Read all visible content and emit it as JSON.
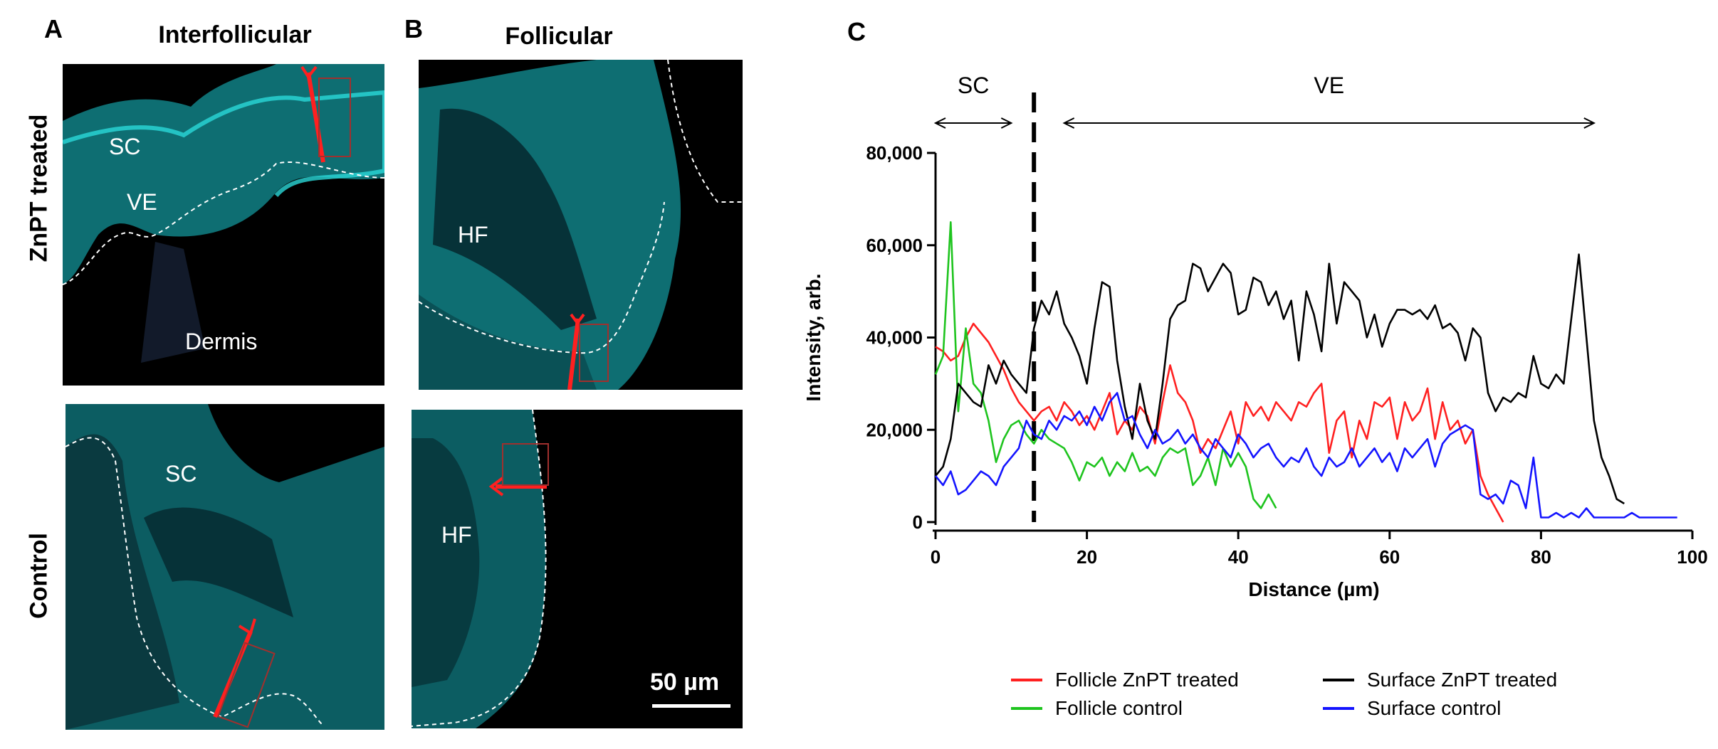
{
  "panels": {
    "a": {
      "letter": "A",
      "title": "Interfollicular"
    },
    "b": {
      "letter": "B",
      "title": "Follicular"
    },
    "c": {
      "letter": "C"
    }
  },
  "row_labels": {
    "top": "ZnPT treated",
    "bottom": "Control"
  },
  "image_labels": {
    "a_top": {
      "sc": "SC",
      "ve": "VE",
      "dermis": "Dermis"
    },
    "a_bottom": {
      "sc": "SC"
    },
    "b_top": {
      "hf": "HF"
    },
    "b_bottom": {
      "hf": "HF"
    }
  },
  "scale_bar": {
    "label": "50 µm"
  },
  "colors": {
    "cyan": "#22d3d3",
    "red": "#ff2020",
    "black": "#000000",
    "green": "#1ec41e",
    "blue": "#1414ff"
  },
  "chart_data": {
    "type": "line",
    "xlabel": "Distance (µm)",
    "ylabel": "Intensity, arb.",
    "xlim": [
      0,
      100
    ],
    "ylim": [
      0,
      80000
    ],
    "x_ticks": [
      0,
      20,
      40,
      60,
      80,
      100
    ],
    "y_ticks": [
      0,
      20000,
      40000,
      60000,
      80000
    ],
    "y_tick_labels": [
      "0",
      "20,000",
      "40,000",
      "60,000",
      "80,000"
    ],
    "divider_x": 13,
    "region_annotations": [
      {
        "label": "SC",
        "x_start": 0,
        "x_end": 10
      },
      {
        "label": "VE",
        "x_start": 17,
        "x_end": 87
      }
    ],
    "series": [
      {
        "name": "Follicle ZnPT treated",
        "color": "#ff2020",
        "x": [
          0,
          1,
          2,
          3,
          4,
          5,
          6,
          7,
          8,
          9,
          10,
          11,
          12,
          13,
          14,
          15,
          16,
          17,
          18,
          19,
          20,
          21,
          22,
          23,
          24,
          25,
          26,
          27,
          28,
          29,
          30,
          31,
          32,
          33,
          34,
          35,
          36,
          37,
          38,
          39,
          40,
          41,
          42,
          43,
          44,
          45,
          46,
          47,
          48,
          49,
          50,
          51,
          52,
          53,
          54,
          55,
          56,
          57,
          58,
          59,
          60,
          61,
          62,
          63,
          64,
          65,
          66,
          67,
          68,
          69,
          70,
          71,
          72,
          73,
          74,
          75
        ],
        "y": [
          38000,
          37000,
          35000,
          36000,
          40000,
          43000,
          41000,
          39000,
          36000,
          33000,
          29000,
          26000,
          24000,
          22000,
          24000,
          25000,
          22000,
          26000,
          24000,
          21000,
          23000,
          20000,
          24000,
          28000,
          19000,
          22000,
          20000,
          25000,
          23000,
          17000,
          26000,
          34000,
          28000,
          26000,
          22000,
          15000,
          18000,
          16000,
          20000,
          24000,
          17000,
          26000,
          23000,
          25000,
          22000,
          26000,
          24000,
          22000,
          26000,
          25000,
          28000,
          30000,
          15000,
          22000,
          24000,
          14000,
          22000,
          18000,
          26000,
          25000,
          27000,
          18000,
          26000,
          22000,
          24000,
          29000,
          18000,
          26000,
          20000,
          22000,
          17000,
          20000,
          10000,
          6000,
          3000,
          0
        ]
      },
      {
        "name": "Follicle control",
        "color": "#1ec41e",
        "x": [
          0,
          1,
          2,
          3,
          4,
          5,
          6,
          7,
          8,
          9,
          10,
          11,
          12,
          13,
          14,
          15,
          16,
          17,
          18,
          19,
          20,
          21,
          22,
          23,
          24,
          25,
          26,
          27,
          28,
          29,
          30,
          31,
          32,
          33,
          34,
          35,
          36,
          37,
          38,
          39,
          40,
          41,
          42,
          43,
          44,
          45
        ],
        "y": [
          32000,
          36000,
          65000,
          24000,
          42000,
          30000,
          28000,
          22000,
          13000,
          18000,
          21000,
          22000,
          19000,
          17000,
          20000,
          18000,
          17000,
          16000,
          13000,
          9000,
          13000,
          12000,
          14000,
          10000,
          13000,
          11000,
          15000,
          11000,
          12000,
          10000,
          14000,
          16000,
          15000,
          16000,
          8000,
          10000,
          14000,
          8000,
          16000,
          12000,
          15000,
          12000,
          5000,
          3000,
          6000,
          3000
        ]
      },
      {
        "name": "Surface ZnPT treated",
        "color": "#000000",
        "x": [
          0,
          1,
          2,
          3,
          4,
          5,
          6,
          7,
          8,
          9,
          10,
          11,
          12,
          13,
          14,
          15,
          16,
          17,
          18,
          19,
          20,
          21,
          22,
          23,
          24,
          25,
          26,
          27,
          28,
          29,
          30,
          31,
          32,
          33,
          34,
          35,
          36,
          37,
          38,
          39,
          40,
          41,
          42,
          43,
          44,
          45,
          46,
          47,
          48,
          49,
          50,
          51,
          52,
          53,
          54,
          55,
          56,
          57,
          58,
          59,
          60,
          61,
          62,
          63,
          64,
          65,
          66,
          67,
          68,
          69,
          70,
          71,
          72,
          73,
          74,
          75,
          76,
          77,
          78,
          79,
          80,
          81,
          82,
          83,
          84,
          85,
          86,
          87,
          88,
          89,
          90,
          91
        ],
        "y": [
          10000,
          12000,
          18000,
          30000,
          28000,
          26000,
          25000,
          34000,
          30000,
          35000,
          32000,
          30000,
          28000,
          42000,
          48000,
          45000,
          50000,
          43000,
          40000,
          36000,
          30000,
          42000,
          52000,
          51000,
          35000,
          25000,
          18000,
          30000,
          22000,
          18000,
          30000,
          44000,
          47000,
          48000,
          56000,
          55000,
          50000,
          53000,
          56000,
          54000,
          45000,
          46000,
          53000,
          52000,
          47000,
          50000,
          44000,
          48000,
          35000,
          50000,
          45000,
          37000,
          56000,
          43000,
          52000,
          50000,
          48000,
          40000,
          45000,
          38000,
          43000,
          46000,
          46000,
          45000,
          46000,
          44000,
          47000,
          42000,
          43000,
          41000,
          35000,
          42000,
          40000,
          28000,
          24000,
          27000,
          26000,
          28000,
          27000,
          36000,
          30000,
          29000,
          32000,
          30000,
          44000,
          58000,
          40000,
          22000,
          14000,
          10000,
          5000,
          4000
        ]
      },
      {
        "name": "Surface control",
        "color": "#1414ff",
        "x": [
          0,
          1,
          2,
          3,
          4,
          5,
          6,
          7,
          8,
          9,
          10,
          11,
          12,
          13,
          14,
          15,
          16,
          17,
          18,
          19,
          20,
          21,
          22,
          23,
          24,
          25,
          26,
          27,
          28,
          29,
          30,
          31,
          32,
          33,
          34,
          35,
          36,
          37,
          38,
          39,
          40,
          41,
          42,
          43,
          44,
          45,
          46,
          47,
          48,
          49,
          50,
          51,
          52,
          53,
          54,
          55,
          56,
          57,
          58,
          59,
          60,
          61,
          62,
          63,
          64,
          65,
          66,
          67,
          68,
          69,
          70,
          71,
          72,
          73,
          74,
          75,
          76,
          77,
          78,
          79,
          80,
          81,
          82,
          83,
          84,
          85,
          86,
          87,
          88,
          89,
          90,
          91,
          92,
          93,
          94,
          95,
          96,
          97,
          98
        ],
        "y": [
          10000,
          8000,
          11000,
          6000,
          7000,
          9000,
          11000,
          10000,
          8000,
          12000,
          14000,
          16000,
          22000,
          19000,
          18000,
          22000,
          20000,
          23000,
          22000,
          24000,
          21000,
          25000,
          22000,
          26000,
          28000,
          22000,
          23000,
          19000,
          16000,
          20000,
          17000,
          18000,
          20000,
          17000,
          19000,
          16000,
          14000,
          18000,
          16000,
          14000,
          19000,
          17000,
          14000,
          16000,
          17000,
          14000,
          12000,
          14000,
          13000,
          16000,
          12000,
          10000,
          14000,
          12000,
          13000,
          16000,
          12000,
          14000,
          16000,
          13000,
          15000,
          11000,
          16000,
          14000,
          16000,
          18000,
          12000,
          17000,
          19000,
          20000,
          21000,
          20000,
          6000,
          5000,
          6000,
          4000,
          9000,
          8000,
          3000,
          14000,
          1000,
          1000,
          2000,
          1000,
          2000,
          1000,
          3000,
          1000,
          1000,
          1000,
          1000,
          1000,
          2000,
          1000,
          1000,
          1000,
          1000,
          1000,
          1000
        ]
      }
    ]
  }
}
